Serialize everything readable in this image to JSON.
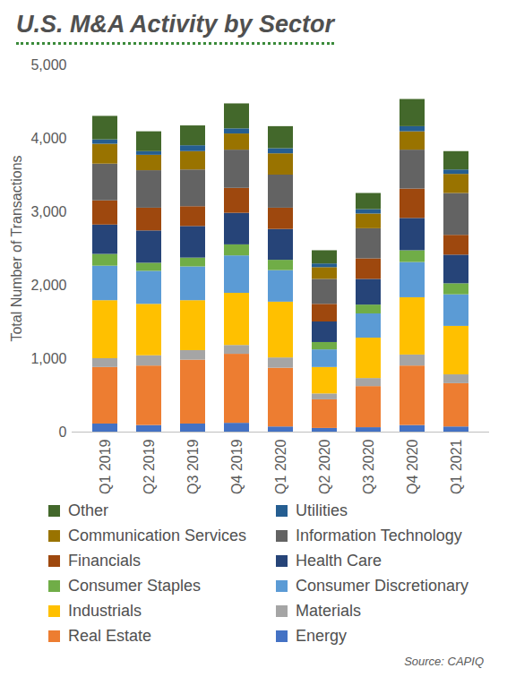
{
  "chart_data": {
    "type": "bar",
    "stacked": true,
    "title": "U.S. M&A Activity by Sector",
    "source": "Source: CAPIQ",
    "ylabel": "Total Number of Transactions",
    "categories": [
      "Q1 2019",
      "Q2 2019",
      "Q3 2019",
      "Q4 2019",
      "Q1 2020",
      "Q2 2020",
      "Q3 2020",
      "Q4 2020",
      "Q1 2021"
    ],
    "ylim": [
      0,
      5000
    ],
    "yticks": [
      0,
      {
        "value": 1000,
        "label": "1,000"
      },
      {
        "value": 2000,
        "label": "2,000"
      },
      {
        "value": 3000,
        "label": "3,000"
      },
      {
        "value": 4000,
        "label": "4,000"
      },
      {
        "value": 5000,
        "label": "5,000"
      }
    ],
    "grid": false,
    "legend": "bottom",
    "series": [
      {
        "name": "Energy",
        "color": "#4472c4",
        "values": [
          110,
          90,
          110,
          120,
          70,
          50,
          60,
          90,
          70
        ]
      },
      {
        "name": "Real Estate",
        "color": "#ed7d31",
        "values": [
          770,
          810,
          870,
          940,
          800,
          390,
          560,
          810,
          590
        ]
      },
      {
        "name": "Materials",
        "color": "#a5a5a5",
        "values": [
          120,
          140,
          130,
          120,
          140,
          80,
          110,
          150,
          120
        ]
      },
      {
        "name": "Industrials",
        "color": "#ffc000",
        "values": [
          790,
          700,
          680,
          710,
          760,
          360,
          550,
          780,
          660
        ]
      },
      {
        "name": "Consumer Discretionary",
        "color": "#5b9bd5",
        "values": [
          470,
          450,
          460,
          510,
          430,
          240,
          330,
          480,
          430
        ]
      },
      {
        "name": "Consumer Staples",
        "color": "#70ad47",
        "values": [
          160,
          110,
          120,
          150,
          140,
          100,
          120,
          160,
          150
        ]
      },
      {
        "name": "Health Care",
        "color": "#264478",
        "values": [
          400,
          440,
          430,
          430,
          420,
          280,
          350,
          440,
          390
        ]
      },
      {
        "name": "Financials",
        "color": "#9e480e",
        "values": [
          330,
          310,
          270,
          340,
          290,
          240,
          280,
          400,
          270
        ]
      },
      {
        "name": "Information Technology",
        "color": "#636363",
        "values": [
          500,
          510,
          500,
          520,
          450,
          340,
          410,
          530,
          570
        ]
      },
      {
        "name": "Communication Services",
        "color": "#997300",
        "values": [
          270,
          210,
          250,
          220,
          290,
          160,
          200,
          250,
          260
        ]
      },
      {
        "name": "Utilities",
        "color": "#255e91",
        "values": [
          60,
          50,
          80,
          70,
          70,
          50,
          60,
          70,
          60
        ]
      },
      {
        "name": "Other",
        "color": "#43682b",
        "values": [
          320,
          270,
          270,
          340,
          300,
          180,
          220,
          370,
          250
        ]
      }
    ]
  }
}
